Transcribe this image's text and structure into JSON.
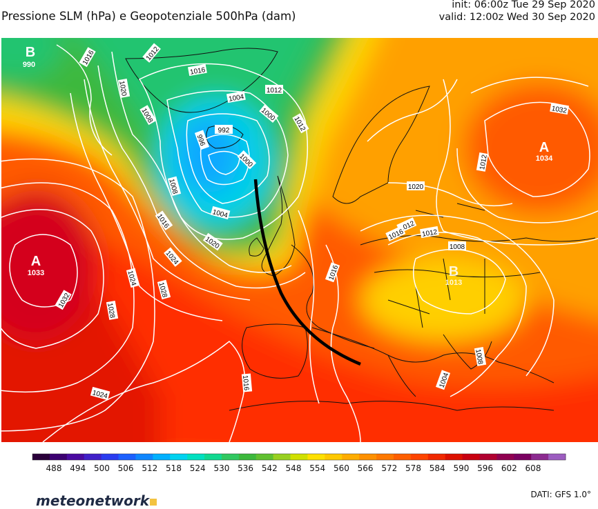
{
  "header": {
    "title": "Pressione SLM (hPa) e Geopotenziale 500hPa (dam)",
    "init": "init: 06:00z Tue 29 Sep 2020",
    "valid": "valid: 12:00z Wed 30 Sep 2020"
  },
  "centers": [
    {
      "letter": "B",
      "value": "990"
    },
    {
      "letter": "A",
      "value": "1033"
    },
    {
      "letter": "A",
      "value": "1034"
    },
    {
      "letter": "B",
      "value": "1013"
    }
  ],
  "isobars": [
    "1016",
    "1020",
    "1012",
    "1016",
    "1012",
    "1008",
    "1004",
    "1000",
    "996",
    "992",
    "1000",
    "1004",
    "1008",
    "1012",
    "1016",
    "1020",
    "1024",
    "1028",
    "1032",
    "1024",
    "1016",
    "1008",
    "1012",
    "1016",
    "1024",
    "1028",
    "1032",
    "1020",
    "1016",
    "1012",
    "1008",
    "1004",
    "1012"
  ],
  "colorbar": {
    "ticks": [
      "488",
      "494",
      "500",
      "506",
      "512",
      "518",
      "524",
      "530",
      "536",
      "542",
      "548",
      "554",
      "560",
      "566",
      "572",
      "578",
      "584",
      "590",
      "596",
      "602",
      "608"
    ],
    "colors": [
      "#2a003a",
      "#3c0070",
      "#4a0aa0",
      "#4020c8",
      "#2a3cf0",
      "#1c60ff",
      "#0e86ff",
      "#00b0ff",
      "#00d2f0",
      "#00e0c0",
      "#10d890",
      "#30c860",
      "#3cb83c",
      "#60c030",
      "#98d020",
      "#d0e000",
      "#ffe000",
      "#ffc800",
      "#ffac00",
      "#ff9000",
      "#ff7800",
      "#ff5e00",
      "#ff4400",
      "#f02800",
      "#dc1000",
      "#c80010",
      "#b00030",
      "#900050",
      "#7a0060",
      "#8c2a90",
      "#9c5cc0"
    ]
  },
  "footer": {
    "logo": "meteonetwork",
    "source": "DATI: GFS 1.0°"
  }
}
